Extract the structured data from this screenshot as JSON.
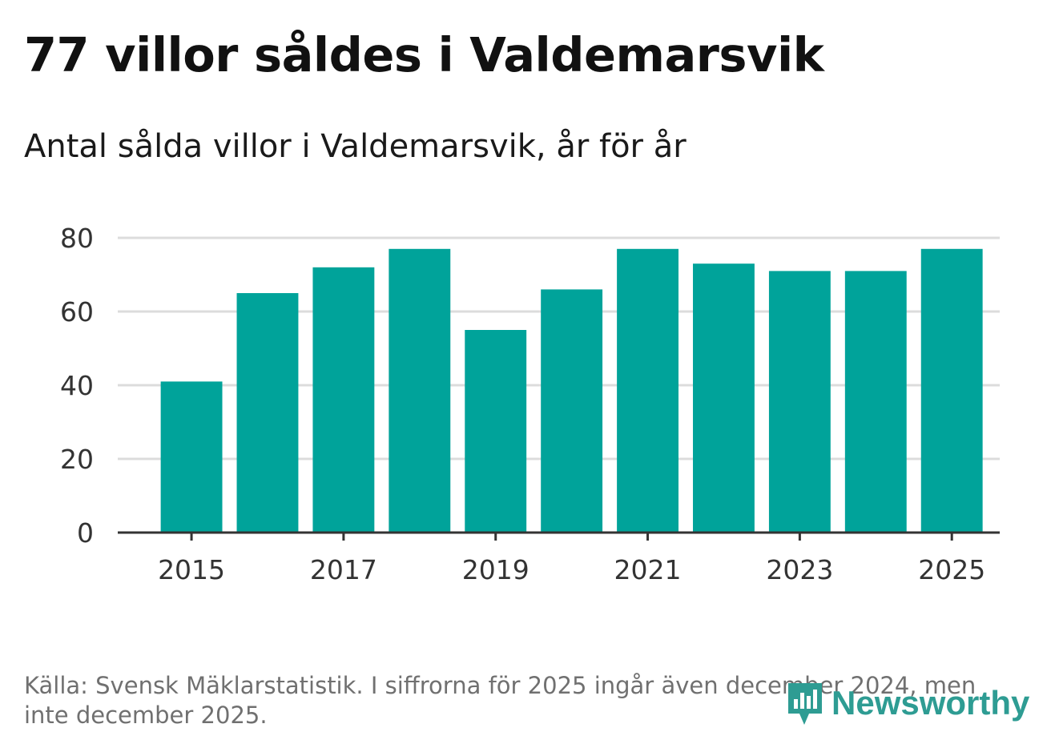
{
  "header": {
    "title": "77 villor såldes i Valdemarsvik",
    "subtitle": "Antal sålda villor i Valdemarsvik, år för år"
  },
  "chart_data": {
    "type": "bar",
    "title": "77 villor såldes i Valdemarsvik",
    "subtitle": "Antal sålda villor i Valdemarsvik, år för år",
    "categories": [
      2015,
      2016,
      2017,
      2018,
      2019,
      2020,
      2021,
      2022,
      2023,
      2024,
      2025
    ],
    "values": [
      41,
      65,
      72,
      77,
      55,
      66,
      77,
      73,
      71,
      71,
      77
    ],
    "ylim": [
      0,
      80
    ],
    "yticks": [
      0,
      20,
      40,
      60,
      80
    ],
    "xticks": [
      2015,
      2017,
      2019,
      2021,
      2023,
      2025
    ],
    "xlabel": "",
    "ylabel": "",
    "grid": true,
    "bar_color": "#00a39a"
  },
  "footer": {
    "source": "Källa: Svensk Mäklarstatistik. I siffrorna för 2025 ingår även december 2024, men inte december 2025.",
    "logo_text": "Newsworthy",
    "logo_icon": "newsworthy-logo-icon",
    "logo_color": "#2e9c93"
  }
}
